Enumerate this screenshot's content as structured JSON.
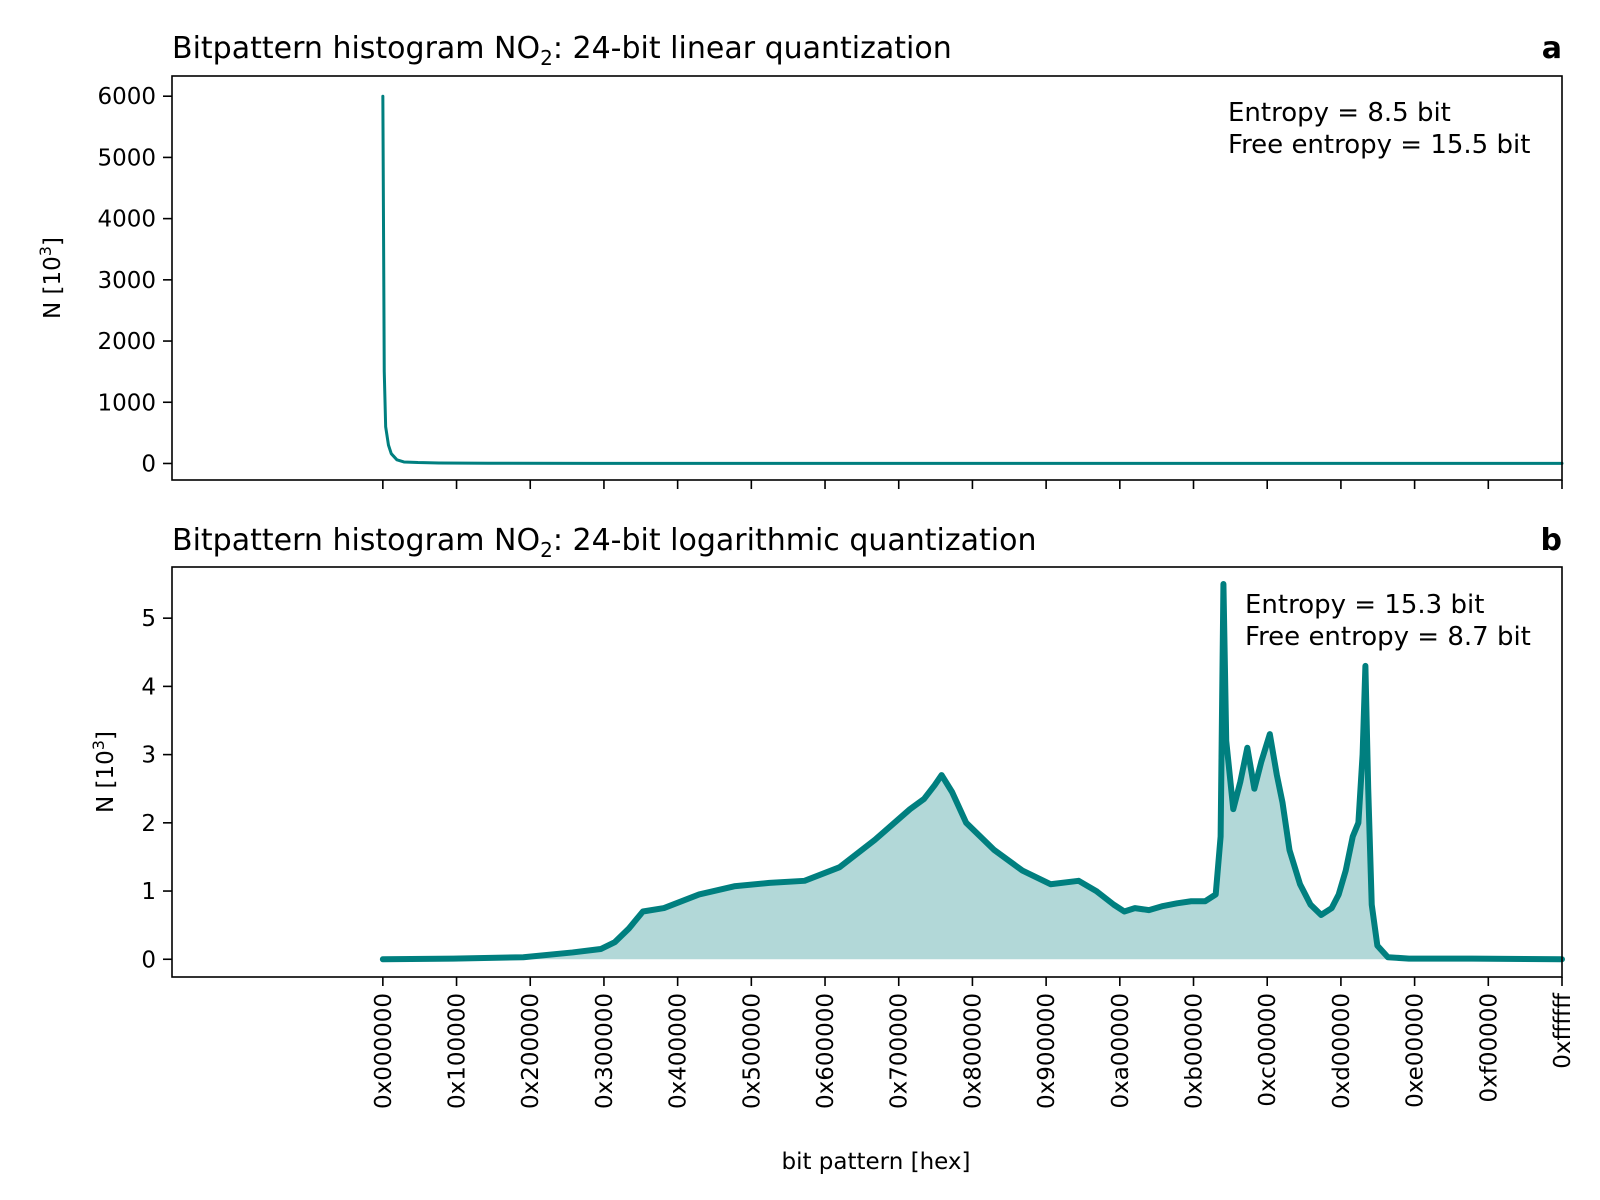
{
  "chart_data": [
    {
      "type": "line",
      "panel": "a",
      "title_main": "Bitpattern histogram NO",
      "title_sub": "2",
      "title_rest": ": 24-bit linear quantization",
      "ylabel_main": "N [10",
      "ylabel_sup": "3",
      "ylabel_end": "]",
      "ylim": [
        -270,
        6330
      ],
      "yticks": [
        0,
        1000,
        2000,
        3000,
        4000,
        5000,
        6000
      ],
      "xlim": [
        -3000000,
        16777215
      ],
      "annotation_lines": [
        "Entropy = 8.5 bit",
        "Free entropy = 15.5 bit"
      ],
      "color": "#007f7f",
      "fill": false,
      "x": [
        0,
        20000,
        40000,
        80000,
        120000,
        200000,
        300000,
        500000,
        800000,
        1500000,
        3000000,
        6000000,
        10000000,
        16777215
      ],
      "y": [
        6000,
        1500,
        600,
        300,
        160,
        60,
        25,
        15,
        8,
        4,
        2,
        1,
        1,
        1
      ]
    },
    {
      "type": "area",
      "panel": "b",
      "title_main": "Bitpattern histogram NO",
      "title_sub": "2",
      "title_rest": ": 24-bit logarithmic quantization",
      "ylabel_main": "N [10",
      "ylabel_sup": "3",
      "ylabel_end": "]",
      "xlabel": "bit pattern [hex]",
      "ylim": [
        -0.26,
        5.75
      ],
      "yticks": [
        0,
        1,
        2,
        3,
        4,
        5
      ],
      "xlim": [
        -3000000,
        16777215
      ],
      "xticks": [
        0,
        1048576,
        2097152,
        3145728,
        4194304,
        5242880,
        6291456,
        7340032,
        8388608,
        9437184,
        10485760,
        11534336,
        12582912,
        13631488,
        14680064,
        15728640,
        16777215
      ],
      "xtick_labels": [
        "0x000000",
        "0x100000",
        "0x200000",
        "0x300000",
        "0x400000",
        "0x500000",
        "0x600000",
        "0x700000",
        "0x800000",
        "0x900000",
        "0xa00000",
        "0xb00000",
        "0xc00000",
        "0xd00000",
        "0xe00000",
        "0xf00000",
        "0xffffff"
      ],
      "annotation_lines": [
        "Entropy = 15.3 bit",
        "Free entropy = 8.7 bit"
      ],
      "color": "#007f7f",
      "fill_color": "#b2d8d8",
      "fill": true,
      "x": [
        0,
        1000000,
        2000000,
        2700000,
        3100000,
        3300000,
        3500000,
        3700000,
        4000000,
        4500000,
        5000000,
        5500000,
        6000000,
        6500000,
        7000000,
        7500000,
        7700000,
        7850000,
        7950000,
        8100000,
        8300000,
        8700000,
        9100000,
        9500000,
        9900000,
        10150000,
        10400000,
        10550000,
        10700000,
        10900000,
        11100000,
        11300000,
        11500000,
        11700000,
        11850000,
        11920000,
        11960000,
        12000000,
        12100000,
        12200000,
        12300000,
        12400000,
        12500000,
        12620000,
        12720000,
        12800000,
        12900000,
        13050000,
        13200000,
        13350000,
        13500000,
        13600000,
        13700000,
        13800000,
        13880000,
        13940000,
        13980000,
        14020000,
        14070000,
        14150000,
        14300000,
        14600000,
        15500000,
        16777215
      ],
      "y": [
        0.0,
        0.01,
        0.03,
        0.1,
        0.15,
        0.25,
        0.45,
        0.7,
        0.75,
        0.95,
        1.07,
        1.12,
        1.15,
        1.35,
        1.75,
        2.2,
        2.35,
        2.55,
        2.7,
        2.45,
        2.0,
        1.6,
        1.3,
        1.1,
        1.15,
        1.0,
        0.8,
        0.7,
        0.75,
        0.72,
        0.78,
        0.82,
        0.85,
        0.85,
        0.95,
        1.8,
        5.5,
        3.2,
        2.2,
        2.6,
        3.1,
        2.5,
        2.9,
        3.3,
        2.7,
        2.3,
        1.6,
        1.1,
        0.8,
        0.65,
        0.75,
        0.95,
        1.3,
        1.8,
        2.0,
        3.0,
        4.3,
        2.5,
        0.8,
        0.2,
        0.03,
        0.01,
        0.01,
        0.0
      ]
    }
  ]
}
